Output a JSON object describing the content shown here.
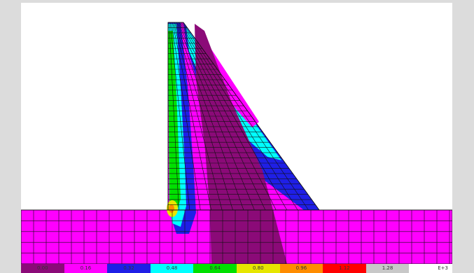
{
  "colors": {
    "background": "#dcdcdc",
    "plot_background": "#ffffff",
    "mesh": "#101010",
    "band_0": "#8b0a78",
    "band_1": "#ff00ff",
    "band_2": "#1f1fe6",
    "band_3": "#00ffff",
    "band_4": "#00e000",
    "band_5": "#e6e600",
    "band_6": "#ff8c00",
    "band_7": "#ff0000",
    "band_8": "#c8c8c8",
    "band_9": "#ffffff"
  },
  "legend": {
    "labels": [
      "0.00",
      "0.16",
      "0.32",
      "0.48",
      "0.64",
      "0.80",
      "0.96",
      "1.12",
      "1.28",
      ""
    ],
    "colors": [
      "#8b0a78",
      "#ff00ff",
      "#1f1fe6",
      "#00ffff",
      "#00e000",
      "#e6e600",
      "#ff8c00",
      "#ff0000",
      "#c8c8c8",
      "#ffffff"
    ],
    "exponent": "E+3"
  }
}
